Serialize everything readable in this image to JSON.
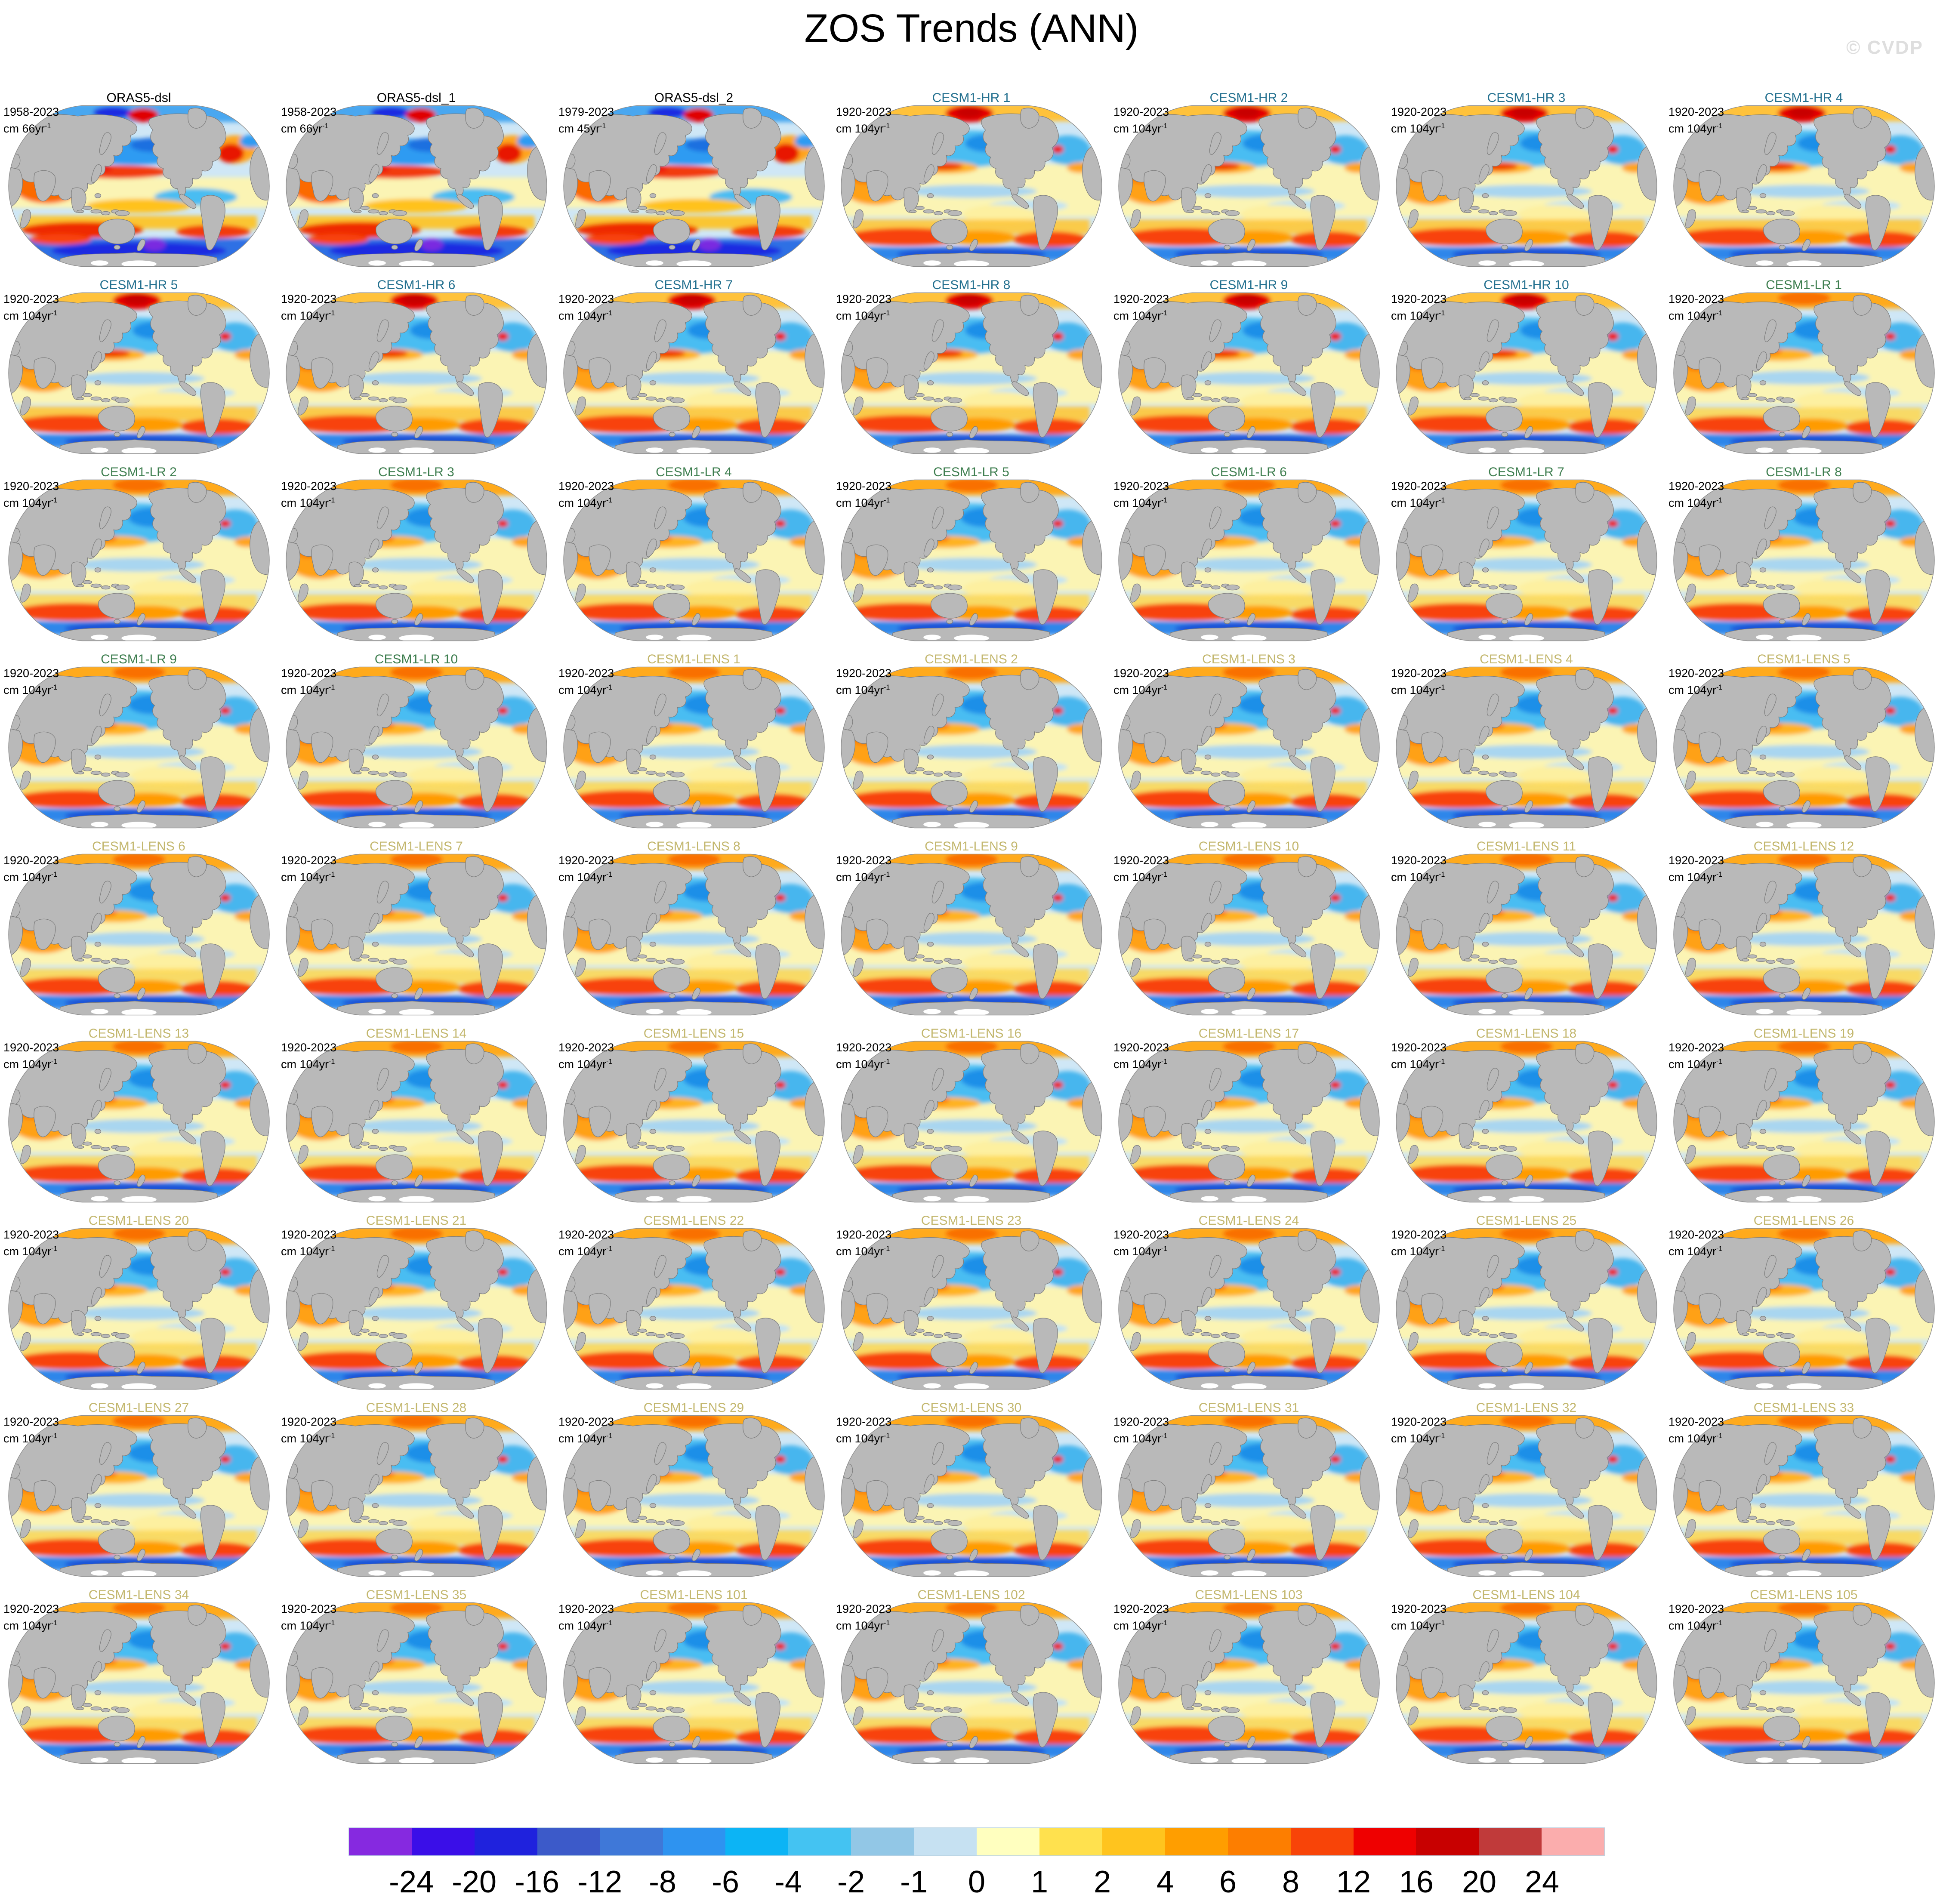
{
  "title": "ZOS Trends (ANN)",
  "watermark": "© CVDP",
  "colors": {
    "title_oras": "#000000",
    "title_hr": "#23708f",
    "title_lr": "#3e7e4f",
    "title_lens": "#c3b76e",
    "land": "#b9b9b9",
    "coastline": "#7d7d7d",
    "watermark": "#dedede"
  },
  "panels": [
    {
      "title": "ORAS5-dsl",
      "period": "1958-2023",
      "unit_base": "cm 66yr",
      "unit_sup": "-1",
      "group": "oras"
    },
    {
      "title": "ORAS5-dsl_1",
      "period": "1958-2023",
      "unit_base": "cm 66yr",
      "unit_sup": "-1",
      "group": "oras"
    },
    {
      "title": "ORAS5-dsl_2",
      "period": "1979-2023",
      "unit_base": "cm 45yr",
      "unit_sup": "-1",
      "group": "oras"
    },
    {
      "title": "CESM1-HR 1",
      "period": "1920-2023",
      "unit_base": "cm 104yr",
      "unit_sup": "-1",
      "group": "hr"
    },
    {
      "title": "CESM1-HR 2",
      "period": "1920-2023",
      "unit_base": "cm 104yr",
      "unit_sup": "-1",
      "group": "hr"
    },
    {
      "title": "CESM1-HR 3",
      "period": "1920-2023",
      "unit_base": "cm 104yr",
      "unit_sup": "-1",
      "group": "hr"
    },
    {
      "title": "CESM1-HR 4",
      "period": "1920-2023",
      "unit_base": "cm 104yr",
      "unit_sup": "-1",
      "group": "hr"
    },
    {
      "title": "CESM1-HR 5",
      "period": "1920-2023",
      "unit_base": "cm 104yr",
      "unit_sup": "-1",
      "group": "hr"
    },
    {
      "title": "CESM1-HR 6",
      "period": "1920-2023",
      "unit_base": "cm 104yr",
      "unit_sup": "-1",
      "group": "hr"
    },
    {
      "title": "CESM1-HR 7",
      "period": "1920-2023",
      "unit_base": "cm 104yr",
      "unit_sup": "-1",
      "group": "hr"
    },
    {
      "title": "CESM1-HR 8",
      "period": "1920-2023",
      "unit_base": "cm 104yr",
      "unit_sup": "-1",
      "group": "hr"
    },
    {
      "title": "CESM1-HR 9",
      "period": "1920-2023",
      "unit_base": "cm 104yr",
      "unit_sup": "-1",
      "group": "hr"
    },
    {
      "title": "CESM1-HR 10",
      "period": "1920-2023",
      "unit_base": "cm 104yr",
      "unit_sup": "-1",
      "group": "hr"
    },
    {
      "title": "CESM1-LR 1",
      "period": "1920-2023",
      "unit_base": "cm 104yr",
      "unit_sup": "-1",
      "group": "lr"
    },
    {
      "title": "CESM1-LR 2",
      "period": "1920-2023",
      "unit_base": "cm 104yr",
      "unit_sup": "-1",
      "group": "lr"
    },
    {
      "title": "CESM1-LR 3",
      "period": "1920-2023",
      "unit_base": "cm 104yr",
      "unit_sup": "-1",
      "group": "lr"
    },
    {
      "title": "CESM1-LR 4",
      "period": "1920-2023",
      "unit_base": "cm 104yr",
      "unit_sup": "-1",
      "group": "lr"
    },
    {
      "title": "CESM1-LR 5",
      "period": "1920-2023",
      "unit_base": "cm 104yr",
      "unit_sup": "-1",
      "group": "lr"
    },
    {
      "title": "CESM1-LR 6",
      "period": "1920-2023",
      "unit_base": "cm 104yr",
      "unit_sup": "-1",
      "group": "lr"
    },
    {
      "title": "CESM1-LR 7",
      "period": "1920-2023",
      "unit_base": "cm 104yr",
      "unit_sup": "-1",
      "group": "lr"
    },
    {
      "title": "CESM1-LR 8",
      "period": "1920-2023",
      "unit_base": "cm 104yr",
      "unit_sup": "-1",
      "group": "lr"
    },
    {
      "title": "CESM1-LR 9",
      "period": "1920-2023",
      "unit_base": "cm 104yr",
      "unit_sup": "-1",
      "group": "lr"
    },
    {
      "title": "CESM1-LR 10",
      "period": "1920-2023",
      "unit_base": "cm 104yr",
      "unit_sup": "-1",
      "group": "lr"
    },
    {
      "title": "CESM1-LENS 1",
      "period": "1920-2023",
      "unit_base": "cm 104yr",
      "unit_sup": "-1",
      "group": "lens"
    },
    {
      "title": "CESM1-LENS 2",
      "period": "1920-2023",
      "unit_base": "cm 104yr",
      "unit_sup": "-1",
      "group": "lens"
    },
    {
      "title": "CESM1-LENS 3",
      "period": "1920-2023",
      "unit_base": "cm 104yr",
      "unit_sup": "-1",
      "group": "lens"
    },
    {
      "title": "CESM1-LENS 4",
      "period": "1920-2023",
      "unit_base": "cm 104yr",
      "unit_sup": "-1",
      "group": "lens"
    },
    {
      "title": "CESM1-LENS 5",
      "period": "1920-2023",
      "unit_base": "cm 104yr",
      "unit_sup": "-1",
      "group": "lens"
    },
    {
      "title": "CESM1-LENS 6",
      "period": "1920-2023",
      "unit_base": "cm 104yr",
      "unit_sup": "-1",
      "group": "lens"
    },
    {
      "title": "CESM1-LENS 7",
      "period": "1920-2023",
      "unit_base": "cm 104yr",
      "unit_sup": "-1",
      "group": "lens"
    },
    {
      "title": "CESM1-LENS 8",
      "period": "1920-2023",
      "unit_base": "cm 104yr",
      "unit_sup": "-1",
      "group": "lens"
    },
    {
      "title": "CESM1-LENS 9",
      "period": "1920-2023",
      "unit_base": "cm 104yr",
      "unit_sup": "-1",
      "group": "lens"
    },
    {
      "title": "CESM1-LENS 10",
      "period": "1920-2023",
      "unit_base": "cm 104yr",
      "unit_sup": "-1",
      "group": "lens"
    },
    {
      "title": "CESM1-LENS 11",
      "period": "1920-2023",
      "unit_base": "cm 104yr",
      "unit_sup": "-1",
      "group": "lens"
    },
    {
      "title": "CESM1-LENS 12",
      "period": "1920-2023",
      "unit_base": "cm 104yr",
      "unit_sup": "-1",
      "group": "lens"
    },
    {
      "title": "CESM1-LENS 13",
      "period": "1920-2023",
      "unit_base": "cm 104yr",
      "unit_sup": "-1",
      "group": "lens"
    },
    {
      "title": "CESM1-LENS 14",
      "period": "1920-2023",
      "unit_base": "cm 104yr",
      "unit_sup": "-1",
      "group": "lens"
    },
    {
      "title": "CESM1-LENS 15",
      "period": "1920-2023",
      "unit_base": "cm 104yr",
      "unit_sup": "-1",
      "group": "lens"
    },
    {
      "title": "CESM1-LENS 16",
      "period": "1920-2023",
      "unit_base": "cm 104yr",
      "unit_sup": "-1",
      "group": "lens"
    },
    {
      "title": "CESM1-LENS 17",
      "period": "1920-2023",
      "unit_base": "cm 104yr",
      "unit_sup": "-1",
      "group": "lens"
    },
    {
      "title": "CESM1-LENS 18",
      "period": "1920-2023",
      "unit_base": "cm 104yr",
      "unit_sup": "-1",
      "group": "lens"
    },
    {
      "title": "CESM1-LENS 19",
      "period": "1920-2023",
      "unit_base": "cm 104yr",
      "unit_sup": "-1",
      "group": "lens"
    },
    {
      "title": "CESM1-LENS 20",
      "period": "1920-2023",
      "unit_base": "cm 104yr",
      "unit_sup": "-1",
      "group": "lens"
    },
    {
      "title": "CESM1-LENS 21",
      "period": "1920-2023",
      "unit_base": "cm 104yr",
      "unit_sup": "-1",
      "group": "lens"
    },
    {
      "title": "CESM1-LENS 22",
      "period": "1920-2023",
      "unit_base": "cm 104yr",
      "unit_sup": "-1",
      "group": "lens"
    },
    {
      "title": "CESM1-LENS 23",
      "period": "1920-2023",
      "unit_base": "cm 104yr",
      "unit_sup": "-1",
      "group": "lens"
    },
    {
      "title": "CESM1-LENS 24",
      "period": "1920-2023",
      "unit_base": "cm 104yr",
      "unit_sup": "-1",
      "group": "lens"
    },
    {
      "title": "CESM1-LENS 25",
      "period": "1920-2023",
      "unit_base": "cm 104yr",
      "unit_sup": "-1",
      "group": "lens"
    },
    {
      "title": "CESM1-LENS 26",
      "period": "1920-2023",
      "unit_base": "cm 104yr",
      "unit_sup": "-1",
      "group": "lens"
    },
    {
      "title": "CESM1-LENS 27",
      "period": "1920-2023",
      "unit_base": "cm 104yr",
      "unit_sup": "-1",
      "group": "lens"
    },
    {
      "title": "CESM1-LENS 28",
      "period": "1920-2023",
      "unit_base": "cm 104yr",
      "unit_sup": "-1",
      "group": "lens"
    },
    {
      "title": "CESM1-LENS 29",
      "period": "1920-2023",
      "unit_base": "cm 104yr",
      "unit_sup": "-1",
      "group": "lens"
    },
    {
      "title": "CESM1-LENS 30",
      "period": "1920-2023",
      "unit_base": "cm 104yr",
      "unit_sup": "-1",
      "group": "lens"
    },
    {
      "title": "CESM1-LENS 31",
      "period": "1920-2023",
      "unit_base": "cm 104yr",
      "unit_sup": "-1",
      "group": "lens"
    },
    {
      "title": "CESM1-LENS 32",
      "period": "1920-2023",
      "unit_base": "cm 104yr",
      "unit_sup": "-1",
      "group": "lens"
    },
    {
      "title": "CESM1-LENS 33",
      "period": "1920-2023",
      "unit_base": "cm 104yr",
      "unit_sup": "-1",
      "group": "lens"
    },
    {
      "title": "CESM1-LENS 34",
      "period": "1920-2023",
      "unit_base": "cm 104yr",
      "unit_sup": "-1",
      "group": "lens"
    },
    {
      "title": "CESM1-LENS 35",
      "period": "1920-2023",
      "unit_base": "cm 104yr",
      "unit_sup": "-1",
      "group": "lens"
    },
    {
      "title": "CESM1-LENS 101",
      "period": "1920-2023",
      "unit_base": "cm 104yr",
      "unit_sup": "-1",
      "group": "lens"
    },
    {
      "title": "CESM1-LENS 102",
      "period": "1920-2023",
      "unit_base": "cm 104yr",
      "unit_sup": "-1",
      "group": "lens"
    },
    {
      "title": "CESM1-LENS 103",
      "period": "1920-2023",
      "unit_base": "cm 104yr",
      "unit_sup": "-1",
      "group": "lens"
    },
    {
      "title": "CESM1-LENS 104",
      "period": "1920-2023",
      "unit_base": "cm 104yr",
      "unit_sup": "-1",
      "group": "lens"
    },
    {
      "title": "CESM1-LENS 105",
      "period": "1920-2023",
      "unit_base": "cm 104yr",
      "unit_sup": "-1",
      "group": "lens"
    }
  ],
  "colorbar": {
    "labels": [
      "-24",
      "-20",
      "-16",
      "-12",
      "-8",
      "-6",
      "-4",
      "-2",
      "-1",
      "0",
      "1",
      "2",
      "4",
      "6",
      "8",
      "12",
      "16",
      "20",
      "24"
    ],
    "colors": [
      "#8629e0",
      "#3a0ee8",
      "#1f22dd",
      "#3c5ac9",
      "#3f78d8",
      "#2e93f0",
      "#0cb4f5",
      "#44c3f2",
      "#92c7e6",
      "#c6e1f2",
      "#ffffbf",
      "#ffe14e",
      "#ffc41e",
      "#ff9e00",
      "#fd7e00",
      "#f84408",
      "#ef0000",
      "#c80000",
      "#c03a3a",
      "#fbadad"
    ]
  },
  "chart_data": {
    "type": "heatmap",
    "subtype": "multi-panel global trend maps (Robinson projection, Pacific-centered)",
    "title": "ZOS Trends (ANN)",
    "grid": {
      "rows": 9,
      "cols": 7,
      "n_panels": 63
    },
    "colorbar_tick_values": [
      -24,
      -20,
      -16,
      -12,
      -8,
      -6,
      -4,
      -2,
      -1,
      0,
      1,
      2,
      4,
      6,
      8,
      12,
      16,
      20,
      24
    ],
    "colorbar_colors": [
      "#8629e0",
      "#3a0ee8",
      "#1f22dd",
      "#3c5ac9",
      "#3f78d8",
      "#2e93f0",
      "#0cb4f5",
      "#44c3f2",
      "#92c7e6",
      "#c6e1f2",
      "#ffffbf",
      "#ffe14e",
      "#ffc41e",
      "#ff9e00",
      "#fd7e00",
      "#f84408",
      "#ef0000",
      "#c80000",
      "#c03a3a",
      "#fbadad"
    ],
    "series": [
      {
        "name": "ORAS5-dsl",
        "period": "1958-2023",
        "units": "cm 66yr⁻¹",
        "members": 1
      },
      {
        "name": "ORAS5-dsl_1",
        "period": "1958-2023",
        "units": "cm 66yr⁻¹",
        "members": 1
      },
      {
        "name": "ORAS5-dsl_2",
        "period": "1979-2023",
        "units": "cm 45yr⁻¹",
        "members": 1
      },
      {
        "name": "CESM1-HR 1–10",
        "period": "1920-2023",
        "units": "cm 104yr⁻¹",
        "members": 10
      },
      {
        "name": "CESM1-LR 1–10",
        "period": "1920-2023",
        "units": "cm 104yr⁻¹",
        "members": 10
      },
      {
        "name": "CESM1-LENS 1–35 and 101–105",
        "period": "1920-2023",
        "units": "cm 104yr⁻¹",
        "members": 40
      }
    ],
    "legend_position": "bottom colorbar",
    "notes": "Each panel is a gridded sea-surface-height trend field over ocean; land masked gray; per-gridcell values not individually legible."
  }
}
